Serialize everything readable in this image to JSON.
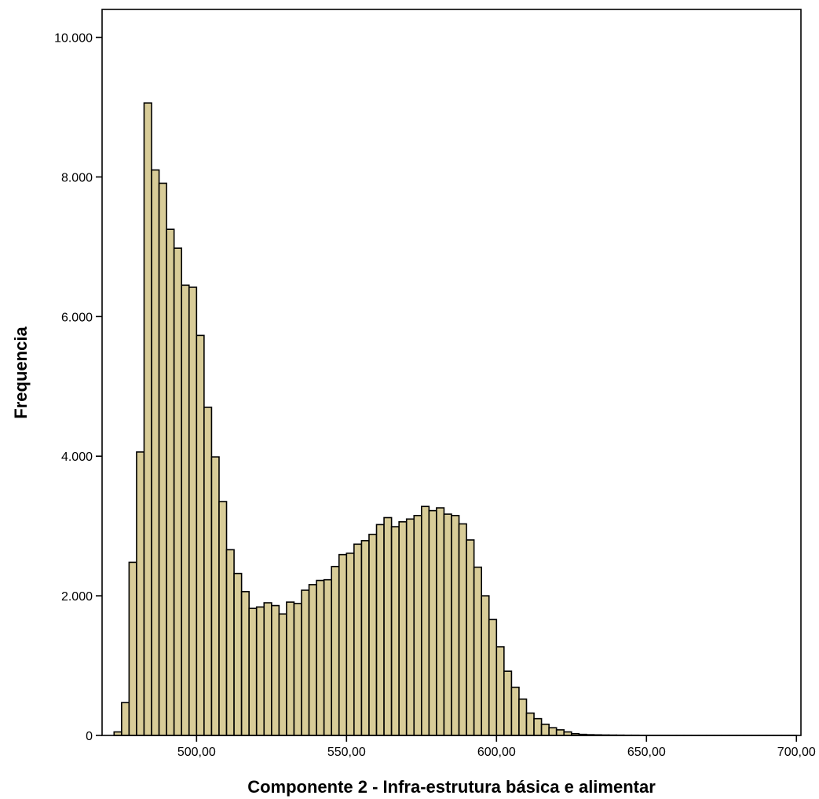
{
  "chart_data": {
    "type": "bar",
    "title": "",
    "xlabel": "Componente 2 - Infra-estrutura básica e alimentar",
    "ylabel": "Frequencia",
    "xlim": [
      468.5,
      701.5
    ],
    "ylim": [
      0,
      10400
    ],
    "x_ticks": [
      500,
      550,
      600,
      650,
      700
    ],
    "x_tick_labels": [
      "500,00",
      "550,00",
      "600,00",
      "650,00",
      "700,00"
    ],
    "y_ticks": [
      0,
      2000,
      4000,
      6000,
      8000,
      10000
    ],
    "y_tick_labels": [
      "0",
      "2.000",
      "4.000",
      "6.000",
      "8.000",
      "10.000"
    ],
    "grid": false,
    "legend": "none",
    "bar_color": "#D8CC98",
    "bin_width": 2.5,
    "bin_starts": [
      472.5,
      475.0,
      477.5,
      480.0,
      482.5,
      485.0,
      487.5,
      490.0,
      492.5,
      495.0,
      497.5,
      500.0,
      502.5,
      505.0,
      507.5,
      510.0,
      512.5,
      515.0,
      517.5,
      520.0,
      522.5,
      525.0,
      527.5,
      530.0,
      532.5,
      535.0,
      537.5,
      540.0,
      542.5,
      545.0,
      547.5,
      550.0,
      552.5,
      555.0,
      557.5,
      560.0,
      562.5,
      565.0,
      567.5,
      570.0,
      572.5,
      575.0,
      577.5,
      580.0,
      582.5,
      585.0,
      587.5,
      590.0,
      592.5,
      595.0,
      597.5,
      600.0,
      602.5,
      605.0,
      607.5,
      610.0,
      612.5,
      615.0,
      617.5,
      620.0,
      622.5,
      625.0,
      627.5,
      630.0,
      632.5,
      635.0,
      637.5,
      640.0,
      642.5,
      645.0,
      647.5,
      650.0,
      652.5,
      655.0,
      657.5,
      660.0,
      662.5,
      665.0,
      667.5,
      670.0,
      672.5,
      675.0,
      677.5,
      680.0,
      682.5,
      685.0,
      687.5,
      690.0,
      692.5,
      695.0,
      697.5
    ],
    "values": [
      50,
      470,
      2480,
      4060,
      9060,
      8100,
      7910,
      7250,
      6980,
      6450,
      6420,
      5730,
      4700,
      3990,
      3350,
      2660,
      2320,
      2060,
      1820,
      1840,
      1900,
      1860,
      1740,
      1910,
      1890,
      2080,
      2160,
      2220,
      2230,
      2420,
      2590,
      2610,
      2740,
      2790,
      2880,
      3020,
      3120,
      2990,
      3060,
      3100,
      3150,
      3280,
      3220,
      3260,
      3170,
      3150,
      3030,
      2800,
      2410,
      2000,
      1660,
      1270,
      920,
      690,
      520,
      320,
      240,
      160,
      110,
      80,
      50,
      25,
      15,
      10,
      8,
      6,
      5,
      4,
      3,
      3,
      2,
      2,
      2,
      2,
      1,
      1,
      1,
      1,
      1,
      1,
      1,
      1,
      1,
      1,
      1,
      1,
      1,
      1,
      1,
      1,
      1
    ]
  }
}
